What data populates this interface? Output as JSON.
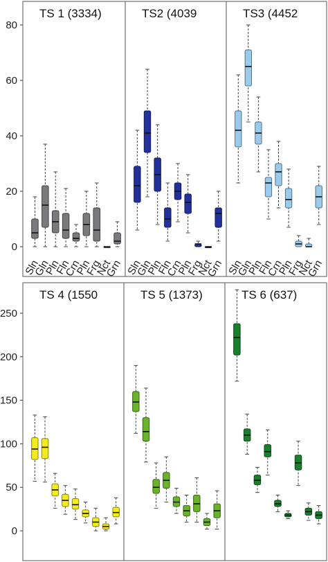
{
  "chart_data": [
    {
      "type": "box",
      "categories": [
        "Sln",
        "Gln",
        "Pln",
        "Fln",
        "Crn",
        "Pln",
        "Frg",
        "Nct",
        "Grn"
      ],
      "ylim": [
        0,
        85
      ],
      "yticks": [
        0,
        20,
        40,
        60,
        80
      ],
      "panels": [
        {
          "title": "TS 1 (3334)",
          "color": "#7a7a7c",
          "boxes": [
            {
              "min": 0,
              "q1": 3,
              "median": 5,
              "q3": 10,
              "max": 18
            },
            {
              "min": 0,
              "q1": 7,
              "median": 15,
              "q3": 22,
              "max": 37
            },
            {
              "min": 0,
              "q1": 5,
              "median": 9,
              "q3": 13,
              "max": 27
            },
            {
              "min": 0,
              "q1": 3,
              "median": 6,
              "q3": 12,
              "max": 21
            },
            {
              "min": 0,
              "q1": 2,
              "median": 3,
              "q3": 5,
              "max": 8
            },
            {
              "min": 0,
              "q1": 4,
              "median": 8,
              "q3": 12,
              "max": 20
            },
            {
              "min": 0,
              "q1": 2,
              "median": 6,
              "q3": 14,
              "max": 23
            },
            {
              "min": 0,
              "q1": 0,
              "median": 0,
              "q3": 0,
              "max": 0
            },
            {
              "min": 0,
              "q1": 1,
              "median": 2,
              "q3": 5,
              "max": 9
            }
          ]
        },
        {
          "title": "TS2 (4039",
          "color": "#23319a",
          "boxes": [
            {
              "min": 6,
              "q1": 16,
              "median": 22,
              "q3": 29,
              "max": 42
            },
            {
              "min": 18,
              "q1": 34,
              "median": 41,
              "q3": 49,
              "max": 64
            },
            {
              "min": 8,
              "q1": 20,
              "median": 26,
              "q3": 32,
              "max": 44
            },
            {
              "min": 2,
              "q1": 7,
              "median": 10,
              "q3": 14,
              "max": 23
            },
            {
              "min": 9,
              "q1": 17,
              "median": 20,
              "q3": 23,
              "max": 30
            },
            {
              "min": 5,
              "q1": 12,
              "median": 16,
              "q3": 19,
              "max": 26
            },
            {
              "min": 0,
              "q1": 0,
              "median": 1,
              "q3": 1,
              "max": 2
            },
            {
              "min": 0,
              "q1": 0,
              "median": 0,
              "q3": 0,
              "max": 0
            },
            {
              "min": 2,
              "q1": 7,
              "median": 12,
              "q3": 14,
              "max": 20
            }
          ]
        },
        {
          "title": "TS3 (4452",
          "color": "#9bcbec",
          "boxes": [
            {
              "min": 23,
              "q1": 36,
              "median": 42,
              "q3": 49,
              "max": 62
            },
            {
              "min": 45,
              "q1": 58,
              "median": 65,
              "q3": 71,
              "max": 80
            },
            {
              "min": 27,
              "q1": 37,
              "median": 41,
              "q3": 45,
              "max": 54
            },
            {
              "min": 10,
              "q1": 18,
              "median": 23,
              "q3": 25,
              "max": 35
            },
            {
              "min": 14,
              "q1": 22,
              "median": 27,
              "q3": 30,
              "max": 38
            },
            {
              "min": 7,
              "q1": 14,
              "median": 17,
              "q3": 21,
              "max": 28
            },
            {
              "min": 0,
              "q1": 0,
              "median": 1,
              "q3": 2,
              "max": 4
            },
            {
              "min": 0,
              "q1": 0,
              "median": 0,
              "q3": 1,
              "max": 3
            },
            {
              "min": 8,
              "q1": 14,
              "median": 18,
              "q3": 22,
              "max": 29
            }
          ]
        }
      ]
    },
    {
      "type": "box",
      "categories": [
        "Sln",
        "Gln",
        "Pln",
        "Fln",
        "Crn",
        "Pln",
        "Frg",
        "Nct",
        "Grn"
      ],
      "ylim": [
        -5,
        285
      ],
      "yticks": [
        0,
        50,
        100,
        150,
        200,
        250
      ],
      "panels": [
        {
          "title": "TS 4 (1550",
          "color": "#f4ec1e",
          "boxes": [
            {
              "min": 57,
              "q1": 82,
              "median": 94,
              "q3": 107,
              "max": 133
            },
            {
              "min": 56,
              "q1": 83,
              "median": 96,
              "q3": 106,
              "max": 131
            },
            {
              "min": 26,
              "q1": 40,
              "median": 47,
              "q3": 54,
              "max": 66
            },
            {
              "min": 19,
              "q1": 28,
              "median": 35,
              "q3": 42,
              "max": 52
            },
            {
              "min": 13,
              "q1": 25,
              "median": 30,
              "q3": 37,
              "max": 48
            },
            {
              "min": 9,
              "q1": 16,
              "median": 20,
              "q3": 24,
              "max": 33
            },
            {
              "min": 0,
              "q1": 5,
              "median": 10,
              "q3": 15,
              "max": 26
            },
            {
              "min": 0,
              "q1": 2,
              "median": 5,
              "q3": 8,
              "max": 15
            },
            {
              "min": 8,
              "q1": 16,
              "median": 21,
              "q3": 27,
              "max": 38
            }
          ]
        },
        {
          "title": "TS 5 (1373)",
          "color": "#6ab42c",
          "boxes": [
            {
              "min": 112,
              "q1": 137,
              "median": 148,
              "q3": 160,
              "max": 190
            },
            {
              "min": 79,
              "q1": 103,
              "median": 114,
              "q3": 130,
              "max": 164
            },
            {
              "min": 26,
              "q1": 43,
              "median": 50,
              "q3": 59,
              "max": 78
            },
            {
              "min": 33,
              "q1": 49,
              "median": 58,
              "q3": 67,
              "max": 85
            },
            {
              "min": 20,
              "q1": 28,
              "median": 33,
              "q3": 39,
              "max": 49
            },
            {
              "min": 10,
              "q1": 17,
              "median": 23,
              "q3": 29,
              "max": 41
            },
            {
              "min": 10,
              "q1": 22,
              "median": 31,
              "q3": 41,
              "max": 61
            },
            {
              "min": 2,
              "q1": 6,
              "median": 10,
              "q3": 14,
              "max": 20
            },
            {
              "min": 2,
              "q1": 15,
              "median": 23,
              "q3": 31,
              "max": 46
            }
          ]
        },
        {
          "title": "TS 6 (637)",
          "color": "#1b7f2d",
          "boxes": [
            {
              "min": 172,
              "q1": 202,
              "median": 222,
              "q3": 238,
              "max": 277
            },
            {
              "min": 88,
              "q1": 103,
              "median": 110,
              "q3": 117,
              "max": 134
            },
            {
              "min": 44,
              "q1": 53,
              "median": 58,
              "q3": 64,
              "max": 73
            },
            {
              "min": 64,
              "q1": 85,
              "median": 91,
              "q3": 99,
              "max": 116
            },
            {
              "min": 22,
              "q1": 28,
              "median": 31,
              "q3": 35,
              "max": 41
            },
            {
              "min": 14,
              "q1": 16,
              "median": 18,
              "q3": 20,
              "max": 23
            },
            {
              "min": 52,
              "q1": 70,
              "median": 78,
              "q3": 87,
              "max": 103
            },
            {
              "min": 12,
              "q1": 18,
              "median": 22,
              "q3": 26,
              "max": 32
            },
            {
              "min": 8,
              "q1": 14,
              "median": 18,
              "q3": 22,
              "max": 29
            }
          ]
        }
      ]
    }
  ]
}
